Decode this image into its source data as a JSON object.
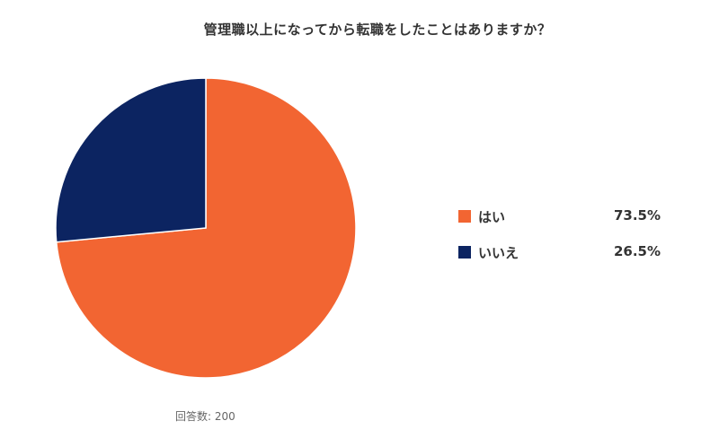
{
  "title": "管理職以上になってから転職をしたことはありますか？",
  "footnote": "回答数: 200",
  "chart_data": {
    "type": "pie",
    "title": "管理職以上になってから転職をしたことはありますか？",
    "categories": [
      "はい",
      "いいえ"
    ],
    "values": [
      73.5,
      26.5
    ],
    "value_labels": [
      "73.5%",
      "26.5%"
    ],
    "colors": [
      "#F26532",
      "#0C2461"
    ],
    "start_angle": "12 o'clock",
    "direction": "clockwise",
    "legend": "right",
    "respondents": 200
  },
  "legend": {
    "items": [
      {
        "label": "はい",
        "value": "73.5%",
        "color": "#F26532"
      },
      {
        "label": "いいえ",
        "value": "26.5%",
        "color": "#0C2461"
      }
    ]
  }
}
